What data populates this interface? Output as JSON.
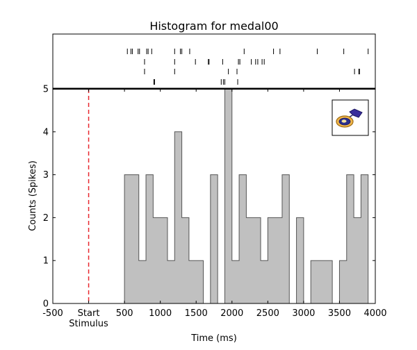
{
  "chart_data": {
    "type": "bar",
    "title": "Histogram for medal00",
    "xlabel": "Time (ms)",
    "ylabel": "Counts (Spikes)",
    "xlim": [
      -500,
      4000
    ],
    "ylim": [
      0,
      5
    ],
    "bin_width": 100,
    "x_ticks": [
      -500,
      0,
      500,
      1000,
      1500,
      2000,
      2500,
      3000,
      3500,
      4000
    ],
    "x_tick_labels": [
      "-500",
      "Start",
      "500",
      "1000",
      "1500",
      "2000",
      "2500",
      "3000",
      "3500",
      "4000"
    ],
    "x_tick_sublabel": "Stimulus",
    "y_ticks": [
      0,
      1,
      2,
      3,
      4,
      5
    ],
    "bins": [
      {
        "start": 500,
        "count": 3
      },
      {
        "start": 600,
        "count": 3
      },
      {
        "start": 700,
        "count": 1
      },
      {
        "start": 800,
        "count": 3
      },
      {
        "start": 900,
        "count": 2
      },
      {
        "start": 1000,
        "count": 2
      },
      {
        "start": 1100,
        "count": 1
      },
      {
        "start": 1200,
        "count": 4
      },
      {
        "start": 1300,
        "count": 2
      },
      {
        "start": 1400,
        "count": 1
      },
      {
        "start": 1500,
        "count": 1
      },
      {
        "start": 1600,
        "count": 0
      },
      {
        "start": 1700,
        "count": 3
      },
      {
        "start": 1800,
        "count": 0
      },
      {
        "start": 1900,
        "count": 5
      },
      {
        "start": 2000,
        "count": 1
      },
      {
        "start": 2100,
        "count": 3
      },
      {
        "start": 2200,
        "count": 2
      },
      {
        "start": 2300,
        "count": 2
      },
      {
        "start": 2400,
        "count": 1
      },
      {
        "start": 2500,
        "count": 2
      },
      {
        "start": 2600,
        "count": 2
      },
      {
        "start": 2700,
        "count": 3
      },
      {
        "start": 2800,
        "count": 0
      },
      {
        "start": 2900,
        "count": 2
      },
      {
        "start": 3000,
        "count": 0
      },
      {
        "start": 3100,
        "count": 1
      },
      {
        "start": 3200,
        "count": 1
      },
      {
        "start": 3300,
        "count": 1
      },
      {
        "start": 3400,
        "count": 0
      },
      {
        "start": 3500,
        "count": 1
      },
      {
        "start": 3600,
        "count": 3
      },
      {
        "start": 3700,
        "count": 2
      },
      {
        "start": 3800,
        "count": 3
      }
    ],
    "stimulus_onset": 0,
    "raster_trials": [
      [
        540,
        590,
        610,
        690,
        710,
        810,
        830,
        880,
        1200,
        1280,
        1300,
        1410,
        2170,
        2580,
        2670,
        3190,
        3560,
        3900
      ],
      [
        780,
        1200,
        1490,
        1670,
        1680,
        1870,
        2090,
        2110,
        2270,
        2330,
        2360,
        2420,
        2450
      ],
      [
        780,
        1200,
        1950,
        2070,
        3710,
        3770,
        3780
      ],
      [
        910,
        920,
        1850,
        1880,
        1900,
        2080
      ]
    ],
    "colors": {
      "bar_fill": "#c0c0c0",
      "bar_edge": "#555555",
      "stimulus_line": "#e8282e",
      "axis": "#000000"
    },
    "inset_icon": "medal-icon",
    "grid": false
  }
}
